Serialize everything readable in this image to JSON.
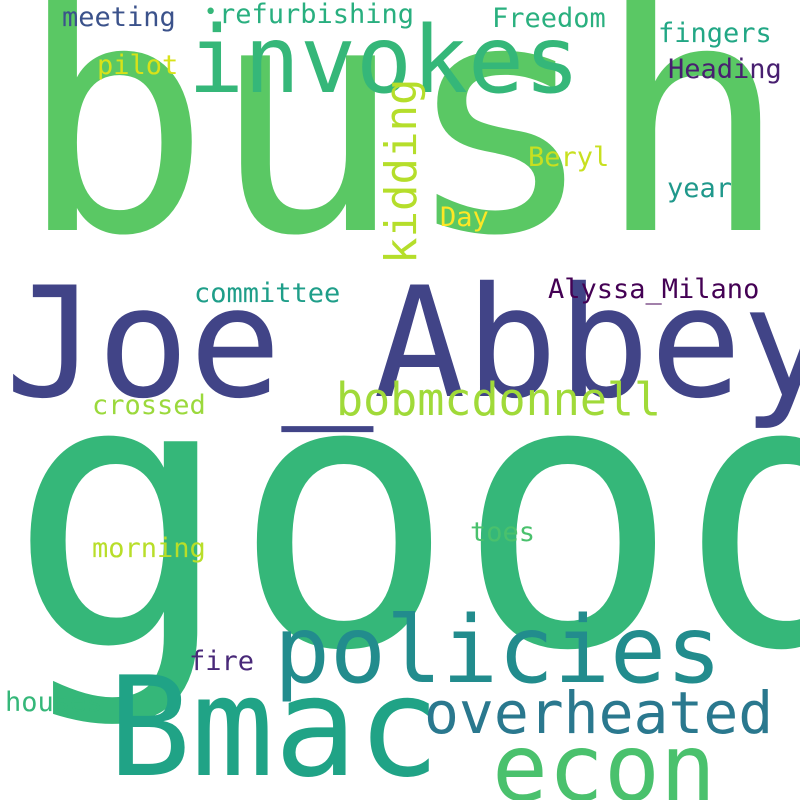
{
  "words": {
    "bush": {
      "text": "bush",
      "color": "#5ac864"
    },
    "good": {
      "text": "good",
      "color": "#35b779"
    },
    "joe_abbey": {
      "text": "Joe_Abbey",
      "color": "#414487"
    },
    "invokes": {
      "text": "invokes",
      "color": "#35b779"
    },
    "policies": {
      "text": "policies",
      "color": "#228c8d"
    },
    "bmac": {
      "text": "Bmac",
      "color": "#20a386"
    },
    "econ": {
      "text": "econ",
      "color": "#4ac16d"
    },
    "overheated": {
      "text": "overheated",
      "color": "#2a788e"
    },
    "bobmcdonnell": {
      "text": "bobmcdonnell",
      "color": "#a0da39"
    },
    "kidding": {
      "text": "kidding",
      "color": "#b5de2b"
    },
    "alyssa_milano": {
      "text": "Alyssa_Milano",
      "color": "#440154"
    },
    "committee": {
      "text": "committee",
      "color": "#1f9e89"
    },
    "meeting": {
      "text": "meeting",
      "color": "#3b528b"
    },
    "refurbishing": {
      "text": "refurbishing",
      "color": "#29af7f"
    },
    "freedom": {
      "text": "Freedom",
      "color": "#2ab07f"
    },
    "fingers": {
      "text": "fingers",
      "color": "#22a785"
    },
    "heading": {
      "text": "Heading",
      "color": "#481f70"
    },
    "pilot": {
      "text": "pilot",
      "color": "#d8e219"
    },
    "beryl": {
      "text": "Beryl",
      "color": "#c8e020"
    },
    "year": {
      "text": "year",
      "color": "#1f988b"
    },
    "day": {
      "text": "Day",
      "color": "#fde725"
    },
    "crossed": {
      "text": "crossed",
      "color": "#9bd93c"
    },
    "toes": {
      "text": "toes",
      "color": "#4ac16d"
    },
    "morning": {
      "text": "morning",
      "color": "#b8de29"
    },
    "fire": {
      "text": "fire",
      "color": "#482878"
    },
    "houses": {
      "text": "houses",
      "color": "#35b779"
    },
    "dot": {
      "text": "•",
      "color": "#35b779"
    }
  }
}
